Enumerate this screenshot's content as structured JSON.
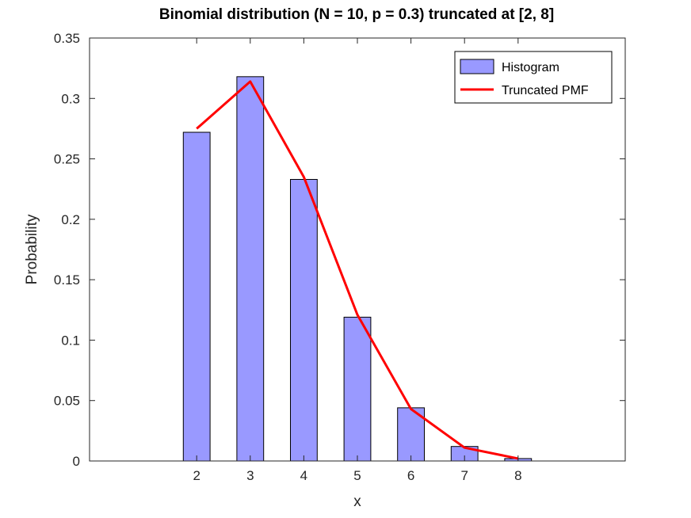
{
  "chart_data": {
    "type": "bar",
    "title": "Binomial distribution (N = 10, p = 0.3) truncated at [2, 8]",
    "xlabel": "x",
    "ylabel": "Probability",
    "xlim": [
      0,
      10
    ],
    "ylim": [
      0,
      0.35
    ],
    "x_ticks": [
      2,
      3,
      4,
      5,
      6,
      7,
      8
    ],
    "y_ticks": [
      0,
      0.05,
      0.1,
      0.15,
      0.2,
      0.25,
      0.3,
      0.35
    ],
    "grid": false,
    "legend_position": "top-right",
    "series": [
      {
        "name": "Histogram",
        "kind": "bar",
        "color": "#9999ff",
        "edge_color": "#000000",
        "x": [
          2,
          3,
          4,
          5,
          6,
          7,
          8
        ],
        "values": [
          0.272,
          0.318,
          0.233,
          0.119,
          0.044,
          0.012,
          0.002
        ]
      },
      {
        "name": "Truncated PMF",
        "kind": "line",
        "color": "#ff0000",
        "x": [
          2,
          3,
          4,
          5,
          6,
          7,
          8
        ],
        "values": [
          0.275,
          0.314,
          0.235,
          0.121,
          0.043,
          0.011,
          0.002
        ]
      }
    ]
  }
}
